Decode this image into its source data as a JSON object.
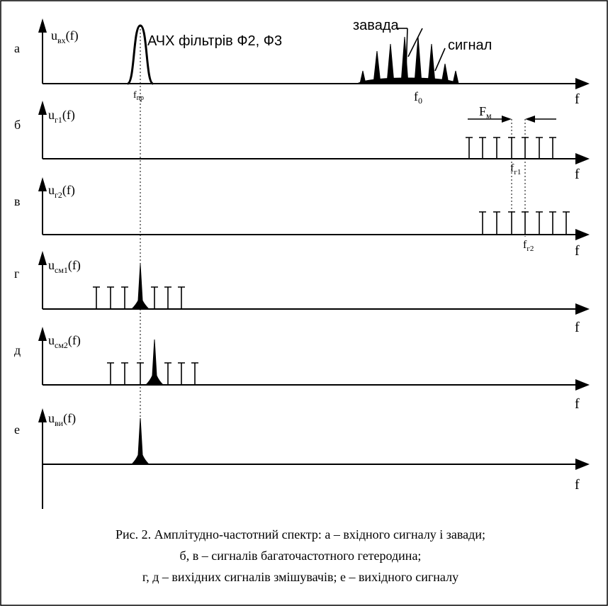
{
  "panels": [
    {
      "id": "a",
      "letter": "а",
      "ylabel_base": "u",
      "ylabel_sub": "вх",
      "ylabel_tail": "(f)",
      "xlabel": "f"
    },
    {
      "id": "b",
      "letter": "б",
      "ylabel_base": "u",
      "ylabel_sub": "г1",
      "ylabel_tail": "(f)",
      "xlabel": "f"
    },
    {
      "id": "v",
      "letter": "в",
      "ylabel_base": "u",
      "ylabel_sub": "г2",
      "ylabel_tail": "(f)",
      "xlabel": "f"
    },
    {
      "id": "g",
      "letter": "г",
      "ylabel_base": "u",
      "ylabel_sub": "см1",
      "ylabel_tail": "(f)",
      "xlabel": "f"
    },
    {
      "id": "d",
      "letter": "д",
      "ylabel_base": "u",
      "ylabel_sub": "см2",
      "ylabel_tail": "(f)",
      "xlabel": "f"
    },
    {
      "id": "e",
      "letter": "е",
      "ylabel_base": "u",
      "ylabel_sub": "ви",
      "ylabel_tail": "(f)",
      "xlabel": "f"
    }
  ],
  "annotations": {
    "filter_label": "АЧХ фільтрів Ф2, Ф3",
    "noise_label": "завада",
    "signal_label": "сигнал",
    "fpr_base": "f",
    "fpr_sub": "пр",
    "f0_base": "f",
    "f0_sub": "0",
    "fm_base": "F",
    "fm_sub": "м",
    "fg1_base": "f",
    "fg1_sub": "г1",
    "fg2_base": "f",
    "fg2_sub": "г2"
  },
  "caption": {
    "line1": "Рис. 2. Амплітудно-частотний спектр: а – вхідного  сигналу і завади;",
    "line2": "б, в – сигналів багаточастотного гетеродина;",
    "line3": "г, д – вихідних сигналів змішувачів; е – вихідного сигналу"
  }
}
